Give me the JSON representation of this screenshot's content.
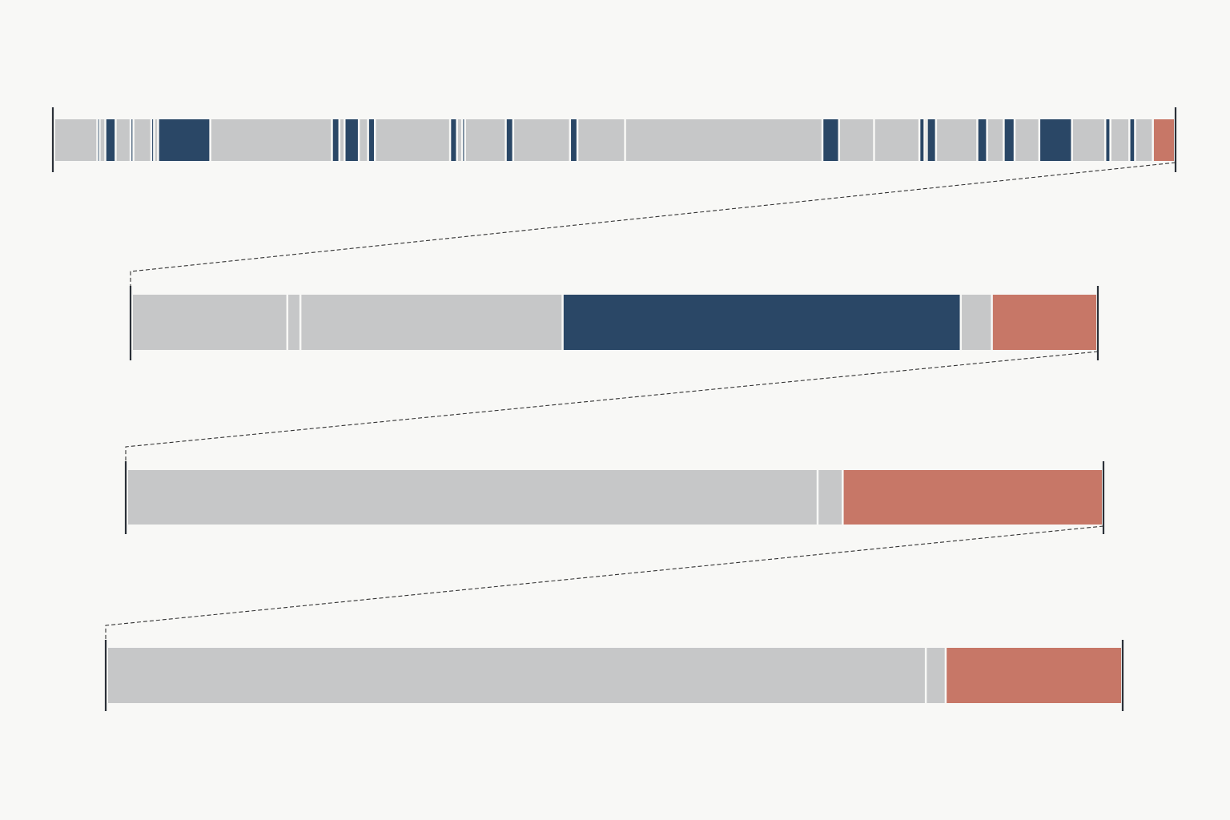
{
  "colors": {
    "background": "#f8f8f6",
    "gray": "#c6c7c8",
    "navy": "#2a4766",
    "coral": "#c77767",
    "bracket": "#2b3038",
    "connector": "#333333",
    "separator": "#ffffff"
  },
  "rows": [
    {
      "segments": [
        {
          "type": "gray",
          "fraction": 0.0375
        },
        {
          "type": "navy",
          "fraction": 0.002
        },
        {
          "type": "gray",
          "fraction": 0.005
        },
        {
          "type": "navy",
          "fraction": 0.009
        },
        {
          "type": "gray",
          "fraction": 0.013
        },
        {
          "type": "navy",
          "fraction": 0.0025
        },
        {
          "type": "gray",
          "fraction": 0.0155
        },
        {
          "type": "navy",
          "fraction": 0.0025
        },
        {
          "type": "gray",
          "fraction": 0.0035
        },
        {
          "type": "navy",
          "fraction": 0.0455
        },
        {
          "type": "gray",
          "fraction": 0.106
        },
        {
          "type": "navy",
          "fraction": 0.0065
        },
        {
          "type": "gray",
          "fraction": 0.0045
        },
        {
          "type": "navy",
          "fraction": 0.0125
        },
        {
          "type": "gray",
          "fraction": 0.008
        },
        {
          "type": "navy",
          "fraction": 0.006
        },
        {
          "type": "gray",
          "fraction": 0.0655
        },
        {
          "type": "navy",
          "fraction": 0.006
        },
        {
          "type": "gray",
          "fraction": 0.0045
        },
        {
          "type": "navy",
          "fraction": 0.0025
        },
        {
          "type": "gray",
          "fraction": 0.0355
        },
        {
          "type": "navy",
          "fraction": 0.0065
        },
        {
          "type": "gray",
          "fraction": 0.0495
        },
        {
          "type": "navy",
          "fraction": 0.0065
        },
        {
          "type": "gray",
          "fraction": 0.0415
        },
        {
          "type": "gray",
          "fraction": 0.172
        },
        {
          "type": "navy",
          "fraction": 0.0145
        },
        {
          "type": "gray",
          "fraction": 0.0305
        },
        {
          "type": "gray",
          "fraction": 0.0395
        },
        {
          "type": "navy",
          "fraction": 0.0045
        },
        {
          "type": "gray",
          "fraction": 0.002
        },
        {
          "type": "navy",
          "fraction": 0.008
        },
        {
          "type": "gray",
          "fraction": 0.036
        },
        {
          "type": "navy",
          "fraction": 0.0085
        },
        {
          "type": "gray",
          "fraction": 0.0145
        },
        {
          "type": "navy",
          "fraction": 0.0095
        },
        {
          "type": "gray",
          "fraction": 0.0215
        },
        {
          "type": "navy",
          "fraction": 0.0285
        },
        {
          "type": "gray",
          "fraction": 0.029
        },
        {
          "type": "navy",
          "fraction": 0.0045
        },
        {
          "type": "gray",
          "fraction": 0.0165
        },
        {
          "type": "navy",
          "fraction": 0.005
        },
        {
          "type": "gray",
          "fraction": 0.0155
        },
        {
          "type": "coral",
          "fraction": 0.0175
        }
      ]
    },
    {
      "segments": [
        {
          "type": "gray",
          "fraction": 0.16
        },
        {
          "type": "gray",
          "fraction": 0.0135
        },
        {
          "type": "gray",
          "fraction": 0.27
        },
        {
          "type": "navy",
          "fraction": 0.41
        },
        {
          "type": "gray",
          "fraction": 0.032
        },
        {
          "type": "coral",
          "fraction": 0.1065
        }
      ]
    },
    {
      "segments": [
        {
          "type": "gray",
          "fraction": 0.702
        },
        {
          "type": "gray",
          "fraction": 0.0255
        },
        {
          "type": "coral",
          "fraction": 0.2625
        }
      ]
    },
    {
      "segments": [
        {
          "type": "gray",
          "fraction": 0.805
        },
        {
          "type": "gray",
          "fraction": 0.0195
        },
        {
          "type": "coral",
          "fraction": 0.1715
        }
      ]
    }
  ]
}
